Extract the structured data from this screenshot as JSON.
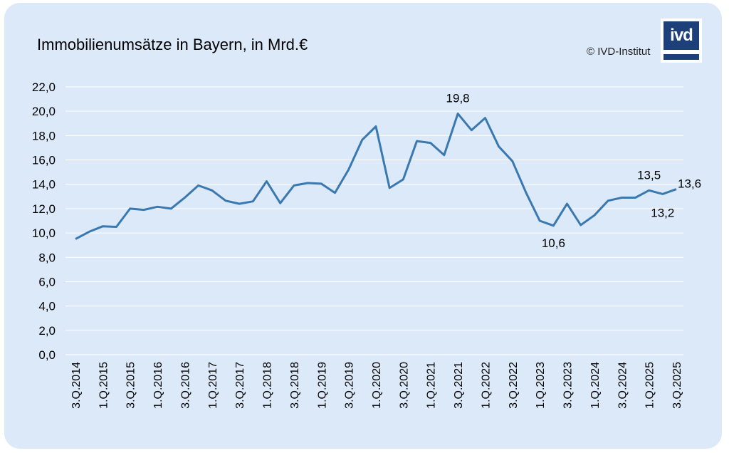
{
  "chart_data": {
    "type": "line",
    "title": "Immobilienumsätze in Bayern, in Mrd.€",
    "xlabel": "",
    "ylabel": "",
    "ylim": [
      0,
      22
    ],
    "y_ticks": [
      "0,0",
      "2,0",
      "4,0",
      "6,0",
      "8,0",
      "10,0",
      "12,0",
      "14,0",
      "16,0",
      "18,0",
      "20,0",
      "22,0"
    ],
    "grid": true,
    "line_color": "#3a78b0",
    "x": [
      "3.Q.2014",
      "4.Q.2014",
      "1.Q.2015",
      "2.Q.2015",
      "3.Q.2015",
      "4.Q.2015",
      "1.Q.2016",
      "2.Q.2016",
      "3.Q.2016",
      "4.Q.2016",
      "1.Q.2017",
      "2.Q.2017",
      "3.Q.2017",
      "4.Q.2017",
      "1.Q.2018",
      "2.Q.2018",
      "3.Q.2018",
      "4.Q.2018",
      "1.Q.2019",
      "2.Q.2019",
      "3.Q.2019",
      "4.Q.2019",
      "1.Q.2020",
      "2.Q.2020",
      "3.Q.2020",
      "4.Q.2020",
      "1.Q.2021",
      "2.Q.2021",
      "3.Q.2021",
      "4.Q.2021",
      "1.Q.2022",
      "2.Q.2022",
      "3.Q.2022",
      "4.Q.2022",
      "1.Q.2023",
      "2.Q.2023",
      "3.Q.2023",
      "4.Q.2023",
      "1.Q.2024",
      "2.Q.2024",
      "3.Q.2024",
      "4.Q.2024",
      "1.Q.2025",
      "2.Q.2025",
      "3.Q.2025"
    ],
    "x_tick_labels": [
      "3.Q.2014",
      "1.Q.2015",
      "3.Q.2015",
      "1.Q.2016",
      "3.Q.2016",
      "1.Q.2017",
      "3.Q.2017",
      "1.Q.2018",
      "3.Q.2018",
      "1.Q.2019",
      "3.Q.2019",
      "1.Q.2020",
      "3.Q.2020",
      "1.Q.2021",
      "3.Q.2021",
      "1.Q.2022",
      "3.Q.2022",
      "1.Q.2023",
      "3.Q.2023",
      "1.Q.2024",
      "3.Q.2024",
      "1.Q.2025",
      "3.Q.2025"
    ],
    "values": [
      9.5,
      10.1,
      10.55,
      10.5,
      12.0,
      11.9,
      12.15,
      12.0,
      12.9,
      13.9,
      13.5,
      12.65,
      12.4,
      12.6,
      14.25,
      12.45,
      13.9,
      14.1,
      14.05,
      13.3,
      15.2,
      17.65,
      18.75,
      13.7,
      14.4,
      17.55,
      17.4,
      16.4,
      19.8,
      18.45,
      19.45,
      17.1,
      15.9,
      13.3,
      11.0,
      10.6,
      12.4,
      10.65,
      11.45,
      12.65,
      12.9,
      12.9,
      13.5,
      13.2,
      13.6
    ],
    "data_labels": [
      {
        "x": "3.Q.2021",
        "text": "19,8"
      },
      {
        "x": "2.Q.2023",
        "text": "10,6"
      },
      {
        "x": "1.Q.2025",
        "text": "13,5"
      },
      {
        "x": "2.Q.2025",
        "text": "13,2"
      },
      {
        "x": "3.Q.2025",
        "text": "13,6"
      }
    ]
  },
  "copyright": "© IVD-Institut",
  "logo_text": "ivd"
}
